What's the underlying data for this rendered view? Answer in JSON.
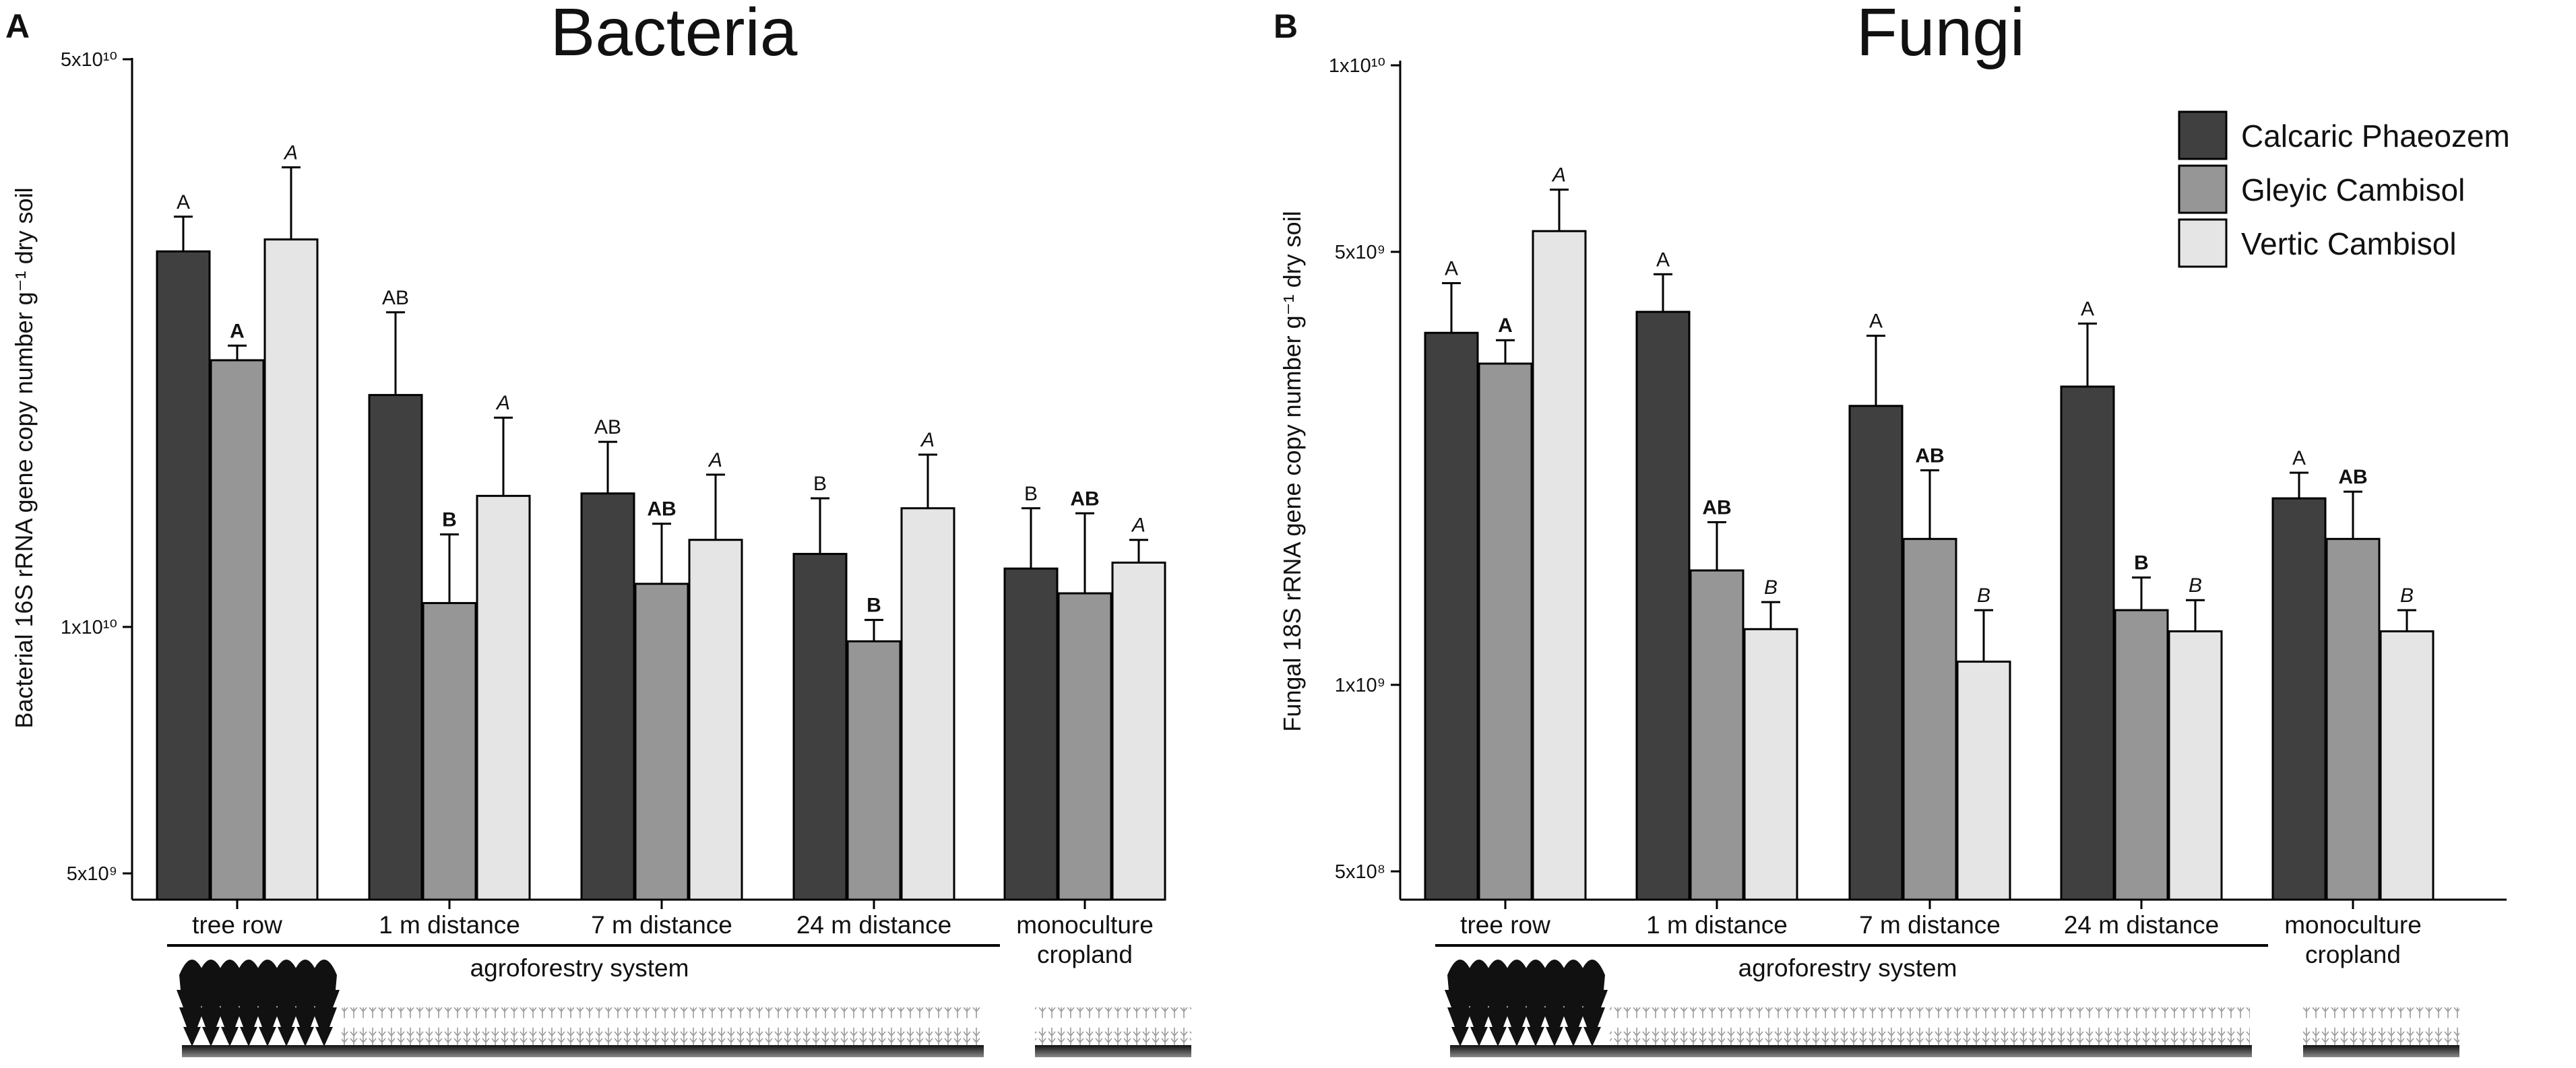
{
  "figure": {
    "panels": [
      {
        "letter": "A",
        "title": "Bacteria",
        "ylabel": "Bacterial 16S rRNA gene copy number g⁻¹ dry soil",
        "yticks": [
          "5x10¹⁰",
          "1x10¹⁰",
          "5x10⁹"
        ]
      },
      {
        "letter": "B",
        "title": "Fungi",
        "ylabel": "Fungal 18S rRNA gene copy number g⁻¹ dry soil",
        "yticks": [
          "1x10¹⁰",
          "5x10⁹",
          "1x10⁹",
          "5x10⁸"
        ]
      }
    ],
    "categories": [
      "tree row",
      "1 m distance",
      "7 m distance",
      "24 m distance",
      "monoculture",
      "cropland"
    ],
    "bracket_label": "agroforestry system",
    "legend": [
      "Calcaric Phaeozem",
      "Gleyic Cambisol",
      "Vertic Cambisol"
    ]
  },
  "chart_data": [
    {
      "type": "bar",
      "title": "Bacteria",
      "panel": "A",
      "ylabel": "Bacterial 16S rRNA gene copy number g⁻¹ dry soil",
      "yscale": "log",
      "ylim": [
        4300000000,
        50000000000
      ],
      "yticks": [
        50000000000,
        10000000000,
        5000000000
      ],
      "ytick_labels": [
        "5x10¹⁰",
        "1x10¹⁰",
        "5x10⁹"
      ],
      "categories": [
        "tree row",
        "1 m distance",
        "7 m distance",
        "24 m distance",
        "monoculture cropland"
      ],
      "series": [
        {
          "name": "Calcaric Phaeozem",
          "color": "#404040",
          "values": [
            29000000000,
            19300000000,
            14600000000,
            12300000000,
            11800000000
          ],
          "errors": [
            3000000000,
            5100000000,
            2300000000,
            2100000000,
            2200000000
          ],
          "letters": [
            "A",
            "AB",
            "AB",
            "B",
            "B"
          ],
          "letter_style": "normal"
        },
        {
          "name": "Gleyic Cambisol",
          "color": "#969696",
          "values": [
            21300000000,
            10700000000,
            11300000000,
            9600000000,
            11000000000
          ],
          "errors": [
            900000000,
            2300000000,
            2100000000,
            600000000,
            2800000000
          ],
          "letters": [
            "A",
            "B",
            "AB",
            "B",
            "AB"
          ],
          "letter_style": "bold"
        },
        {
          "name": "Vertic Cambisol",
          "color": "#e5e5e5",
          "values": [
            30000000000,
            14500000000,
            12800000000,
            14000000000,
            12000000000
          ],
          "errors": [
            6800000000,
            3600000000,
            2600000000,
            2300000000,
            800000000
          ],
          "letters": [
            "A",
            "A",
            "A",
            "A",
            "A"
          ],
          "letter_style": "italic"
        }
      ]
    },
    {
      "type": "bar",
      "title": "Fungi",
      "panel": "B",
      "ylabel": "Fungal 18S rRNA gene copy number g⁻¹ dry soil",
      "yscale": "log",
      "ylim": [
        440000000,
        10000000000
      ],
      "yticks": [
        10000000000,
        5000000000,
        1000000000,
        500000000
      ],
      "ytick_labels": [
        "1x10¹⁰",
        "5x10⁹",
        "1x10⁹",
        "5x10⁸"
      ],
      "categories": [
        "tree row",
        "1 m distance",
        "7 m distance",
        "24 m distance",
        "monoculture cropland"
      ],
      "series": [
        {
          "name": "Calcaric Phaeozem",
          "color": "#404040",
          "values": [
            3700000000,
            4000000000,
            2820000000,
            3030000000,
            2000000000
          ],
          "errors": [
            750000000,
            600000000,
            840000000,
            800000000,
            200000000
          ],
          "letters": [
            "A",
            "A",
            "A",
            "A",
            "A"
          ],
          "letter_style": "normal"
        },
        {
          "name": "Gleyic Cambisol",
          "color": "#969696",
          "values": [
            3300000000,
            1530000000,
            1720000000,
            1320000000,
            1720000000
          ],
          "errors": [
            300000000,
            300000000,
            500000000,
            170000000,
            330000000
          ],
          "letters": [
            "A",
            "AB",
            "AB",
            "B",
            "AB"
          ],
          "letter_style": "bold"
        },
        {
          "name": "Vertic Cambisol",
          "color": "#e5e5e5",
          "values": [
            5400000000,
            1230000000,
            1090000000,
            1220000000,
            1220000000
          ],
          "errors": [
            900000000,
            130000000,
            230000000,
            150000000,
            100000000
          ],
          "letters": [
            "A",
            "B",
            "B",
            "B",
            "B"
          ],
          "letter_style": "italic"
        }
      ]
    }
  ]
}
